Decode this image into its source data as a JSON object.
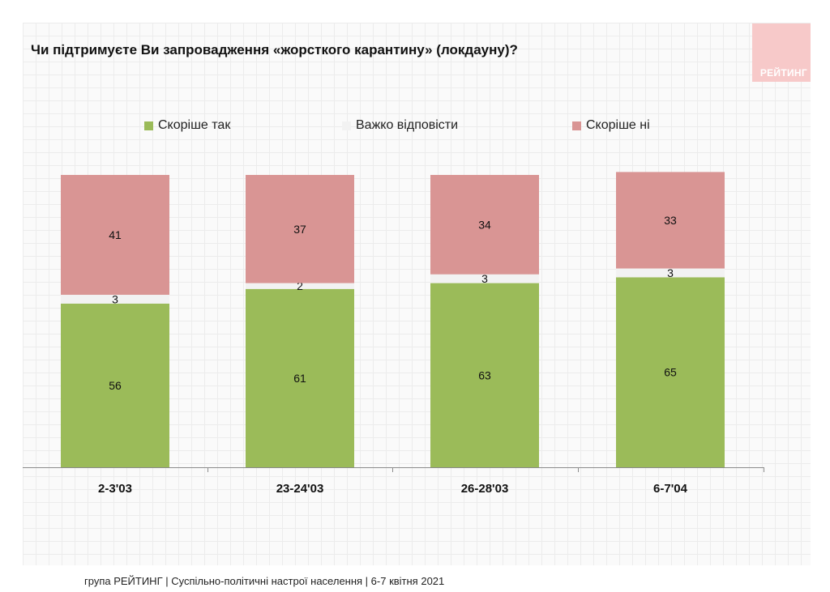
{
  "header": {
    "title": "Чи підтримуєте Ви запровадження «жорсткого карантину» (локдауну)?",
    "logo_text": "РЕЙТИНГ"
  },
  "footer": {
    "text": "група РЕЙТИНГ | Суспільно-політичні настрої населення | 6-7 квітня 2021"
  },
  "colors": {
    "yes": "#9bbb59",
    "hard": "#f2f2f2",
    "no": "#d99594",
    "logo": "#f7c9c9"
  },
  "chart_data": {
    "type": "bar",
    "stacked": true,
    "title": "Чи підтримуєте Ви запровадження «жорсткого карантину» (локдауну)?",
    "categories": [
      "2-3'03",
      "23-24'03",
      "26-28'03",
      "6-7'04"
    ],
    "series": [
      {
        "name": "Скоріше так",
        "values": [
          56,
          61,
          63,
          65
        ],
        "color": "#9bbb59"
      },
      {
        "name": "Важко відповісти",
        "values": [
          3,
          2,
          3,
          3
        ],
        "color": "#f2f2f2"
      },
      {
        "name": "Скоріше ні",
        "values": [
          41,
          37,
          34,
          33
        ],
        "color": "#d99594"
      }
    ],
    "ylim": [
      0,
      100
    ],
    "legend_position": "top",
    "grid": false
  }
}
